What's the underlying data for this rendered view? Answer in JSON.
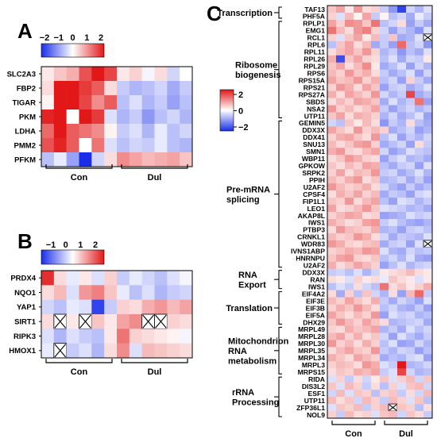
{
  "colors": {
    "low": "#1a2ee8",
    "mid": "#ffffff",
    "high": "#e21818",
    "missing": "#ffffff"
  },
  "chart_data": [
    {
      "panel": "A",
      "type": "heatmap",
      "legend": {
        "min": -2,
        "max": 2,
        "ticks": [
          "−2",
          "−1",
          "0",
          "1",
          "2"
        ]
      },
      "rows": [
        "SLC2A3",
        "FBP2",
        "TIGAR",
        "PKM",
        "LDHA",
        "PMM2",
        "PFKM"
      ],
      "groups": [
        {
          "label": "Con",
          "n": 6
        },
        {
          "label": "Dul",
          "n": 6
        }
      ],
      "values": [
        [
          0.2,
          0.5,
          0.7,
          1.5,
          2.0,
          1.6,
          0.2,
          0.4,
          -0.1,
          0.3,
          -0.4,
          0.0
        ],
        [
          0.3,
          2.0,
          2.0,
          1.7,
          1.4,
          0.3,
          -0.5,
          -0.7,
          -0.6,
          -0.4,
          -0.8,
          -0.5
        ],
        [
          0.1,
          2.0,
          2.0,
          1.6,
          1.0,
          1.4,
          -0.6,
          -0.3,
          -0.7,
          -0.5,
          -0.9,
          -0.6
        ],
        [
          1.9,
          2.0,
          0.0,
          2.0,
          1.7,
          -0.3,
          -0.7,
          -0.5,
          -1.0,
          -0.6,
          -0.4,
          -0.7
        ],
        [
          1.3,
          2.0,
          1.4,
          1.2,
          1.0,
          0.1,
          -0.5,
          -0.3,
          -0.7,
          -0.2,
          -0.6,
          -0.4
        ],
        [
          1.5,
          1.9,
          1.4,
          0.0,
          1.2,
          -0.3,
          -0.6,
          -0.4,
          -0.5,
          -0.2,
          -0.6,
          -0.7
        ],
        [
          -0.6,
          -0.2,
          -0.9,
          -2.0,
          -0.4,
          0.3,
          1.0,
          0.8,
          0.6,
          0.7,
          0.8,
          0.5
        ]
      ]
    },
    {
      "panel": "B",
      "type": "heatmap",
      "legend": {
        "min": -2,
        "max": 2,
        "ticks": [
          "−1",
          "0",
          "1",
          "2"
        ]
      },
      "rows": [
        "PRDX4",
        "NQO1",
        "YAP1",
        "SIRT1",
        "RIPK3",
        "HMOX1"
      ],
      "groups": [
        {
          "label": "Con",
          "n": 6
        },
        {
          "label": "Dul",
          "n": 6
        }
      ],
      "missing": [
        [
          3,
          1
        ],
        [
          3,
          3
        ],
        [
          3,
          8
        ],
        [
          3,
          9
        ],
        [
          5,
          1
        ]
      ],
      "values": [
        [
          1.8,
          0.3,
          -0.2,
          0.2,
          -0.3,
          0.4,
          -0.5,
          -0.2,
          -0.4,
          -0.6,
          -0.3,
          -0.1
        ],
        [
          0.3,
          0.6,
          -0.3,
          0.9,
          1.1,
          0.5,
          -0.2,
          -0.6,
          -0.3,
          -0.7,
          -0.5,
          -0.4
        ],
        [
          -0.4,
          -0.6,
          -0.2,
          -0.3,
          -1.8,
          -0.5,
          0.4,
          0.3,
          0.7,
          0.9,
          0.6,
          0.8
        ],
        [
          0.3,
          0.0,
          0.2,
          0.0,
          0.5,
          0.2,
          0.8,
          1.0,
          0.0,
          0.0,
          0.4,
          0.3
        ],
        [
          -0.3,
          -0.7,
          -0.3,
          -0.5,
          -0.6,
          0.2,
          1.2,
          0.4,
          0.3,
          0.2,
          0.1,
          -0.1
        ],
        [
          -0.2,
          0.0,
          -0.5,
          -0.3,
          -0.7,
          0.3,
          1.0,
          -0.3,
          0.6,
          0.5,
          0.4,
          0.3
        ]
      ]
    },
    {
      "panel": "C",
      "type": "heatmap",
      "legend": {
        "min": -2,
        "max": 2,
        "ticks": [
          "2",
          "0",
          "−2"
        ]
      },
      "rows": [
        "TAF13",
        "PHF5A",
        "RPLP1",
        "EMG1",
        "RCL1",
        "RPL6",
        "RPL11",
        "RPL26",
        "RPL29",
        "RPS6",
        "RPS15A",
        "RPS21",
        "RPS27A",
        "SBDS",
        "NSA2",
        "UTP11",
        "GEMIN5",
        "DDX3X",
        "DDX41",
        "SNU13",
        "SMN1",
        "WBP11",
        "GPKOW",
        "SRPK2",
        "PPIH",
        "U2AF2",
        "CPSF4",
        "FIP1L1",
        "LEO1",
        "AKAP8L",
        "IWS1",
        "PTBP3",
        "CRNKL1",
        "WDR83",
        "IVNS1ABP",
        "HNRNPU",
        "U2AF2",
        "DDX3X",
        "RAN",
        "IWS1",
        "EIF4A2",
        "EIF3E",
        "EIF3B",
        "EIF5A",
        "DHX29",
        "MRPL49",
        "MRPL28",
        "MRPL30",
        "MRPL35",
        "MRPL34",
        "MRPL3",
        "MRPS15",
        "RIDA",
        "DIS3L2",
        "ESF1",
        "UTP11",
        "ZFP36L1",
        "NOL9"
      ],
      "categories": [
        {
          "label": [
            "Transcription"
          ],
          "from": 0,
          "to": 1
        },
        {
          "label": [
            "Ribosome",
            "biogenesis"
          ],
          "from": 2,
          "to": 15
        },
        {
          "label": [
            "Pre-mRNA",
            "splicing"
          ],
          "from": 16,
          "to": 36
        },
        {
          "label": [
            "RNA",
            "Export"
          ],
          "from": 37,
          "to": 39
        },
        {
          "label": [
            "Translation"
          ],
          "from": 40,
          "to": 44
        },
        {
          "label": [
            "Mitochondrion",
            "RNA",
            "metabolism"
          ],
          "from": 45,
          "to": 51
        },
        {
          "label": [
            "rRNA",
            "Processing"
          ],
          "from": 52,
          "to": 57
        }
      ],
      "groups": [
        {
          "label": "Con",
          "n": 6
        },
        {
          "label": "Dul",
          "n": 6
        }
      ],
      "missing": [
        [
          4,
          11
        ],
        [
          33,
          11
        ],
        [
          56,
          7
        ]
      ],
      "values": [
        [
          0.5,
          0.8,
          0.2,
          0.9,
          0.3,
          0.4,
          -0.5,
          -1.0,
          -1.8,
          -0.4,
          -0.7,
          -0.3
        ],
        [
          0.4,
          -0.3,
          0.6,
          0.1,
          0.8,
          -0.5,
          0.1,
          -0.6,
          -0.4,
          -0.8,
          -0.2,
          -0.5
        ],
        [
          0.8,
          0.4,
          1.0,
          0.9,
          0.5,
          1.2,
          -0.6,
          -0.4,
          0.3,
          -0.9,
          -0.5,
          -0.8
        ],
        [
          1.2,
          0.6,
          0.3,
          0.9,
          1.1,
          0.4,
          -0.4,
          -0.9,
          -0.5,
          -0.7,
          -1.0,
          -0.3
        ],
        [
          0.4,
          -0.3,
          0.5,
          0.8,
          0.2,
          0.6,
          -0.5,
          0.5,
          -0.8,
          -0.7,
          -0.3,
          0.0
        ],
        [
          -0.6,
          0.5,
          0.8,
          0.3,
          0.6,
          -0.8,
          -0.5,
          -0.9,
          1.3,
          -0.6,
          -0.4,
          -1.0
        ],
        [
          0.3,
          0.6,
          0.8,
          0.5,
          0.9,
          0.4,
          -0.7,
          -0.5,
          -1.0,
          -0.6,
          -0.8,
          -0.3
        ],
        [
          0.7,
          -1.7,
          0.5,
          0.8,
          0.4,
          0.3,
          -0.6,
          -0.3,
          -0.8,
          -0.4,
          -0.5,
          0.2
        ],
        [
          0.5,
          0.8,
          0.3,
          0.6,
          1.0,
          0.2,
          -0.8,
          -0.6,
          -0.3,
          -0.9,
          -0.4,
          -0.7
        ],
        [
          0.6,
          0.4,
          0.9,
          0.5,
          0.7,
          0.3,
          -0.5,
          -0.8,
          -0.6,
          -0.3,
          -0.9,
          -0.4
        ],
        [
          0.8,
          0.5,
          0.6,
          0.9,
          0.4,
          0.7,
          -0.6,
          -0.4,
          -0.9,
          0.4,
          -0.5,
          -0.8
        ],
        [
          0.4,
          0.9,
          0.7,
          0.3,
          0.8,
          0.5,
          -0.9,
          -0.5,
          -0.4,
          -0.8,
          -0.6,
          -0.3
        ],
        [
          0.7,
          0.3,
          0.8,
          0.6,
          0.4,
          0.9,
          -0.4,
          -0.7,
          -0.5,
          1.6,
          -0.8,
          -0.6
        ],
        [
          0.3,
          0.6,
          0.4,
          0.8,
          0.7,
          0.5,
          -0.8,
          -0.3,
          -0.7,
          -0.5,
          1.2,
          -0.9
        ],
        [
          0.9,
          0.4,
          0.6,
          0.3,
          0.5,
          0.8,
          -0.5,
          -0.9,
          -0.6,
          -0.4,
          -0.7,
          -0.5
        ],
        [
          0.5,
          0.8,
          0.3,
          0.7,
          0.6,
          0.4,
          -0.7,
          -0.4,
          -0.8,
          -0.6,
          -0.3,
          -0.9
        ],
        [
          -0.4,
          -0.6,
          0.5,
          0.2,
          0.6,
          0.3,
          -1.0,
          -0.5,
          -0.7,
          0.3,
          -0.6,
          -0.8
        ],
        [
          0.8,
          0.5,
          0.3,
          0.9,
          0.4,
          0.6,
          0.4,
          -0.8,
          -0.6,
          -0.4,
          -0.9,
          -0.7
        ],
        [
          0.4,
          0.7,
          0.8,
          0.5,
          0.3,
          0.9,
          -0.6,
          -0.3,
          -0.9,
          -0.5,
          -0.7,
          -0.4
        ],
        [
          0.6,
          0.3,
          0.5,
          0.8,
          0.9,
          0.4,
          -0.8,
          -0.6,
          -0.4,
          -0.9,
          0.3,
          -0.5
        ],
        [
          0.7,
          0.9,
          0.4,
          0.3,
          0.6,
          0.8,
          -0.4,
          -0.9,
          -0.7,
          -0.3,
          -0.5,
          -0.6
        ],
        [
          0.3,
          0.5,
          0.9,
          0.7,
          0.4,
          0.3,
          -0.9,
          -0.5,
          -0.3,
          -0.7,
          -0.6,
          -0.8
        ],
        [
          0.5,
          0.3,
          0.6,
          0.4,
          0.8,
          0.7,
          -0.6,
          -0.8,
          -0.5,
          -0.4,
          -0.9,
          -0.3
        ],
        [
          0.4,
          0.8,
          0.3,
          0.6,
          0.5,
          0.9,
          -0.5,
          -0.4,
          -0.8,
          -0.6,
          -0.3,
          -0.7
        ],
        [
          0.6,
          0.4,
          0.7,
          0.9,
          0.3,
          0.5,
          -0.7,
          -0.6,
          -0.4,
          -0.8,
          -0.5,
          -0.9
        ],
        [
          0.9,
          0.6,
          0.4,
          0.5,
          0.7,
          0.3,
          -0.4,
          -0.7,
          -0.9,
          -0.5,
          -0.8,
          -0.6
        ],
        [
          0.3,
          0.7,
          0.5,
          0.8,
          0.4,
          0.6,
          -0.8,
          -0.5,
          -0.6,
          -0.9,
          -0.4,
          -0.3
        ],
        [
          0.5,
          0.4,
          0.9,
          0.3,
          0.6,
          0.8,
          -0.6,
          -0.9,
          -0.3,
          -0.4,
          -0.7,
          -0.5
        ],
        [
          0.8,
          0.3,
          0.4,
          0.6,
          0.9,
          0.5,
          -0.3,
          -0.4,
          -0.5,
          -0.7,
          -0.6,
          -0.8
        ],
        [
          0.4,
          0.6,
          0.8,
          0.7,
          0.3,
          0.4,
          -0.9,
          -0.8,
          -0.7,
          -0.3,
          -0.5,
          -0.4
        ],
        [
          0.7,
          0.5,
          0.3,
          0.4,
          0.8,
          0.9,
          -0.5,
          -0.3,
          -0.6,
          -0.8,
          -0.9,
          -0.7
        ],
        [
          0.3,
          0.9,
          0.6,
          0.5,
          0.4,
          0.7,
          -0.7,
          -0.6,
          -0.9,
          -0.5,
          -0.4,
          -0.6
        ],
        [
          0.6,
          0.4,
          0.5,
          0.9,
          0.7,
          0.3,
          -0.4,
          -0.8,
          -0.5,
          -0.6,
          -0.7,
          -0.3
        ],
        [
          0.9,
          0.7,
          0.4,
          0.3,
          0.5,
          0.6,
          -0.8,
          -0.5,
          -0.4,
          -0.9,
          -0.3,
          -0.8
        ],
        [
          0.4,
          0.5,
          0.7,
          0.6,
          0.9,
          0.8,
          -0.3,
          -0.7,
          -0.8,
          -0.4,
          -0.6,
          -0.5
        ],
        [
          0.5,
          0.8,
          0.9,
          0.4,
          0.3,
          0.5,
          -0.6,
          -0.4,
          -0.7,
          -0.3,
          -0.8,
          -0.9
        ],
        [
          0.7,
          0.3,
          0.5,
          0.8,
          0.6,
          0.4,
          -0.9,
          -0.6,
          -0.3,
          -0.7,
          -0.5,
          -0.4
        ],
        [
          -0.5,
          -0.4,
          -0.6,
          -0.3,
          -0.7,
          -0.4,
          0.2,
          0.3,
          0.4,
          0.6,
          0.3,
          0.2
        ],
        [
          0.3,
          0.2,
          -0.3,
          0.4,
          0.2,
          0.3,
          -0.2,
          0.5,
          0.3,
          0.2,
          -0.3,
          0.2
        ],
        [
          -0.6,
          -0.3,
          -0.5,
          0.3,
          -0.4,
          -0.6,
          1.2,
          0.3,
          0.5,
          0.2,
          0.4,
          0.7
        ],
        [
          0.3,
          -0.8,
          0.4,
          -0.6,
          0.5,
          -0.4,
          -0.7,
          0.3,
          -0.9,
          0.6,
          1.3,
          -0.5
        ],
        [
          0.6,
          0.4,
          0.8,
          0.5,
          0.3,
          0.7,
          -0.5,
          -0.8,
          -0.4,
          -0.6,
          -0.9,
          -0.3
        ],
        [
          0.4,
          0.7,
          0.5,
          0.9,
          0.6,
          0.3,
          -0.6,
          -0.4,
          -0.7,
          -0.8,
          -0.5,
          -0.9
        ],
        [
          0.8,
          0.5,
          0.3,
          0.6,
          0.4,
          0.9,
          -0.9,
          -0.3,
          -0.5,
          -0.4,
          -0.7,
          -0.6
        ],
        [
          0.5,
          0.9,
          0.6,
          0.4,
          0.8,
          0.5,
          0.3,
          -0.7,
          -0.6,
          -0.5,
          -0.4,
          -0.8
        ],
        [
          0.4,
          0.3,
          0.7,
          0.5,
          0.6,
          0.8,
          -0.7,
          -0.5,
          -0.8,
          -0.3,
          -0.6,
          -0.4
        ],
        [
          0.6,
          0.8,
          0.4,
          0.7,
          0.3,
          0.5,
          -0.4,
          -0.9,
          -0.3,
          -0.6,
          -0.8,
          -0.5
        ],
        [
          0.9,
          0.4,
          0.6,
          0.3,
          0.7,
          0.4,
          -0.6,
          -0.3,
          -0.9,
          -0.8,
          -0.4,
          -0.7
        ],
        [
          0.3,
          0.6,
          0.8,
          0.5,
          0.4,
          0.9,
          -0.5,
          -0.7,
          -0.4,
          -0.5,
          -0.9,
          -0.6
        ],
        [
          0.7,
          0.5,
          0.3,
          0.8,
          0.6,
          0.4,
          -0.8,
          -0.6,
          -0.7,
          -0.4,
          -0.3,
          -0.9
        ],
        [
          0.4,
          0.6,
          0.5,
          0.3,
          0.9,
          0.7,
          -0.3,
          -0.5,
          2.0,
          -0.7,
          -0.6,
          -0.4
        ],
        [
          0.3,
          0.5,
          0.4,
          0.7,
          0.6,
          0.8,
          -0.5,
          -0.3,
          1.6,
          -0.4,
          -0.7,
          -0.6
        ],
        [
          -0.3,
          0.4,
          -0.5,
          0.3,
          -0.4,
          0.2,
          0.5,
          -0.3,
          0.4,
          0.6,
          -0.4,
          0.5
        ],
        [
          0.5,
          -0.3,
          0.6,
          0.4,
          -0.5,
          0.3,
          -0.6,
          0.4,
          -0.3,
          0.5,
          0.6,
          -0.4
        ],
        [
          -0.4,
          0.6,
          -0.3,
          0.5,
          0.4,
          -0.6,
          0.4,
          0.5,
          -0.5,
          0.3,
          -0.4,
          0.6
        ],
        [
          0.6,
          0.3,
          0.5,
          -0.4,
          0.6,
          0.4,
          -0.5,
          0.6,
          0.4,
          -0.3,
          0.5,
          -0.6
        ],
        [
          -0.3,
          0.5,
          0.4,
          0.6,
          -0.5,
          0.4,
          0.6,
          -0.3,
          0.5,
          0.4,
          -0.6,
          0.3
        ],
        [
          0.4,
          -0.5,
          0.6,
          0.3,
          0.4,
          -0.3,
          0.5,
          0.6,
          -0.4,
          0.5,
          0.3,
          -0.5
        ]
      ]
    }
  ]
}
